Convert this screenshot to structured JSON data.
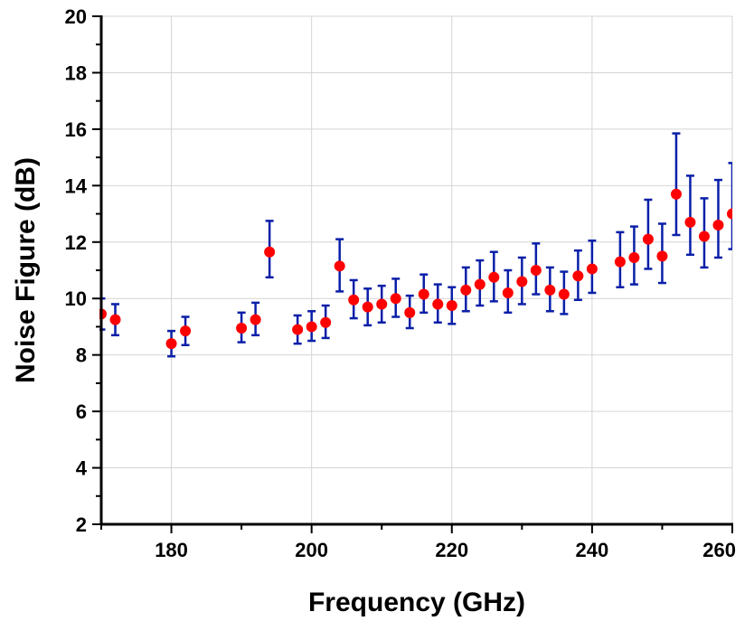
{
  "chart_data": {
    "type": "scatter",
    "title": "",
    "xlabel": "Frequency (GHz)",
    "ylabel": "Noise Figure (dB)",
    "xlim": [
      170,
      260
    ],
    "ylim": [
      2,
      20
    ],
    "x_ticks": [
      180,
      200,
      220,
      240,
      260
    ],
    "y_ticks": [
      2,
      4,
      6,
      8,
      10,
      12,
      14,
      16,
      18,
      20
    ],
    "grid": true,
    "legend": "none",
    "marker_color": "#ff0000",
    "errorbar_color": "#0a1fa8",
    "series": [
      {
        "points": [
          {
            "x": 170,
            "y": 9.45,
            "lo": 8.9,
            "hi": 10.0
          },
          {
            "x": 172,
            "y": 9.25,
            "lo": 8.7,
            "hi": 9.8
          },
          {
            "x": 180,
            "y": 8.4,
            "lo": 7.95,
            "hi": 8.85
          },
          {
            "x": 182,
            "y": 8.85,
            "lo": 8.35,
            "hi": 9.35
          },
          {
            "x": 190,
            "y": 8.95,
            "lo": 8.45,
            "hi": 9.5
          },
          {
            "x": 192,
            "y": 9.25,
            "lo": 8.7,
            "hi": 9.85
          },
          {
            "x": 194,
            "y": 11.65,
            "lo": 10.75,
            "hi": 12.75
          },
          {
            "x": 198,
            "y": 8.9,
            "lo": 8.4,
            "hi": 9.4
          },
          {
            "x": 200,
            "y": 9.0,
            "lo": 8.5,
            "hi": 9.55
          },
          {
            "x": 202,
            "y": 9.15,
            "lo": 8.6,
            "hi": 9.75
          },
          {
            "x": 204,
            "y": 11.15,
            "lo": 10.25,
            "hi": 12.1
          },
          {
            "x": 206,
            "y": 9.95,
            "lo": 9.3,
            "hi": 10.65
          },
          {
            "x": 208,
            "y": 9.7,
            "lo": 9.05,
            "hi": 10.35
          },
          {
            "x": 210,
            "y": 9.8,
            "lo": 9.15,
            "hi": 10.45
          },
          {
            "x": 212,
            "y": 10.0,
            "lo": 9.35,
            "hi": 10.7
          },
          {
            "x": 214,
            "y": 9.5,
            "lo": 8.95,
            "hi": 10.1
          },
          {
            "x": 216,
            "y": 10.15,
            "lo": 9.5,
            "hi": 10.85
          },
          {
            "x": 218,
            "y": 9.8,
            "lo": 9.15,
            "hi": 10.5
          },
          {
            "x": 220,
            "y": 9.75,
            "lo": 9.1,
            "hi": 10.4
          },
          {
            "x": 222,
            "y": 10.3,
            "lo": 9.55,
            "hi": 11.1
          },
          {
            "x": 224,
            "y": 10.5,
            "lo": 9.75,
            "hi": 11.35
          },
          {
            "x": 226,
            "y": 10.75,
            "lo": 9.9,
            "hi": 11.65
          },
          {
            "x": 228,
            "y": 10.2,
            "lo": 9.5,
            "hi": 11.0
          },
          {
            "x": 230,
            "y": 10.6,
            "lo": 9.8,
            "hi": 11.45
          },
          {
            "x": 232,
            "y": 11.0,
            "lo": 10.15,
            "hi": 11.95
          },
          {
            "x": 234,
            "y": 10.3,
            "lo": 9.55,
            "hi": 11.1
          },
          {
            "x": 236,
            "y": 10.15,
            "lo": 9.45,
            "hi": 10.95
          },
          {
            "x": 238,
            "y": 10.8,
            "lo": 9.95,
            "hi": 11.7
          },
          {
            "x": 240,
            "y": 11.05,
            "lo": 10.2,
            "hi": 12.05
          },
          {
            "x": 244,
            "y": 11.3,
            "lo": 10.4,
            "hi": 12.35
          },
          {
            "x": 246,
            "y": 11.45,
            "lo": 10.5,
            "hi": 12.55
          },
          {
            "x": 248,
            "y": 12.1,
            "lo": 11.05,
            "hi": 13.5
          },
          {
            "x": 250,
            "y": 11.5,
            "lo": 10.55,
            "hi": 12.65
          },
          {
            "x": 252,
            "y": 13.7,
            "lo": 12.25,
            "hi": 15.85
          },
          {
            "x": 254,
            "y": 12.7,
            "lo": 11.55,
            "hi": 14.35
          },
          {
            "x": 256,
            "y": 12.2,
            "lo": 11.1,
            "hi": 13.55
          },
          {
            "x": 258,
            "y": 12.6,
            "lo": 11.45,
            "hi": 14.2
          },
          {
            "x": 260,
            "y": 13.0,
            "lo": 11.75,
            "hi": 14.8
          }
        ]
      }
    ]
  }
}
